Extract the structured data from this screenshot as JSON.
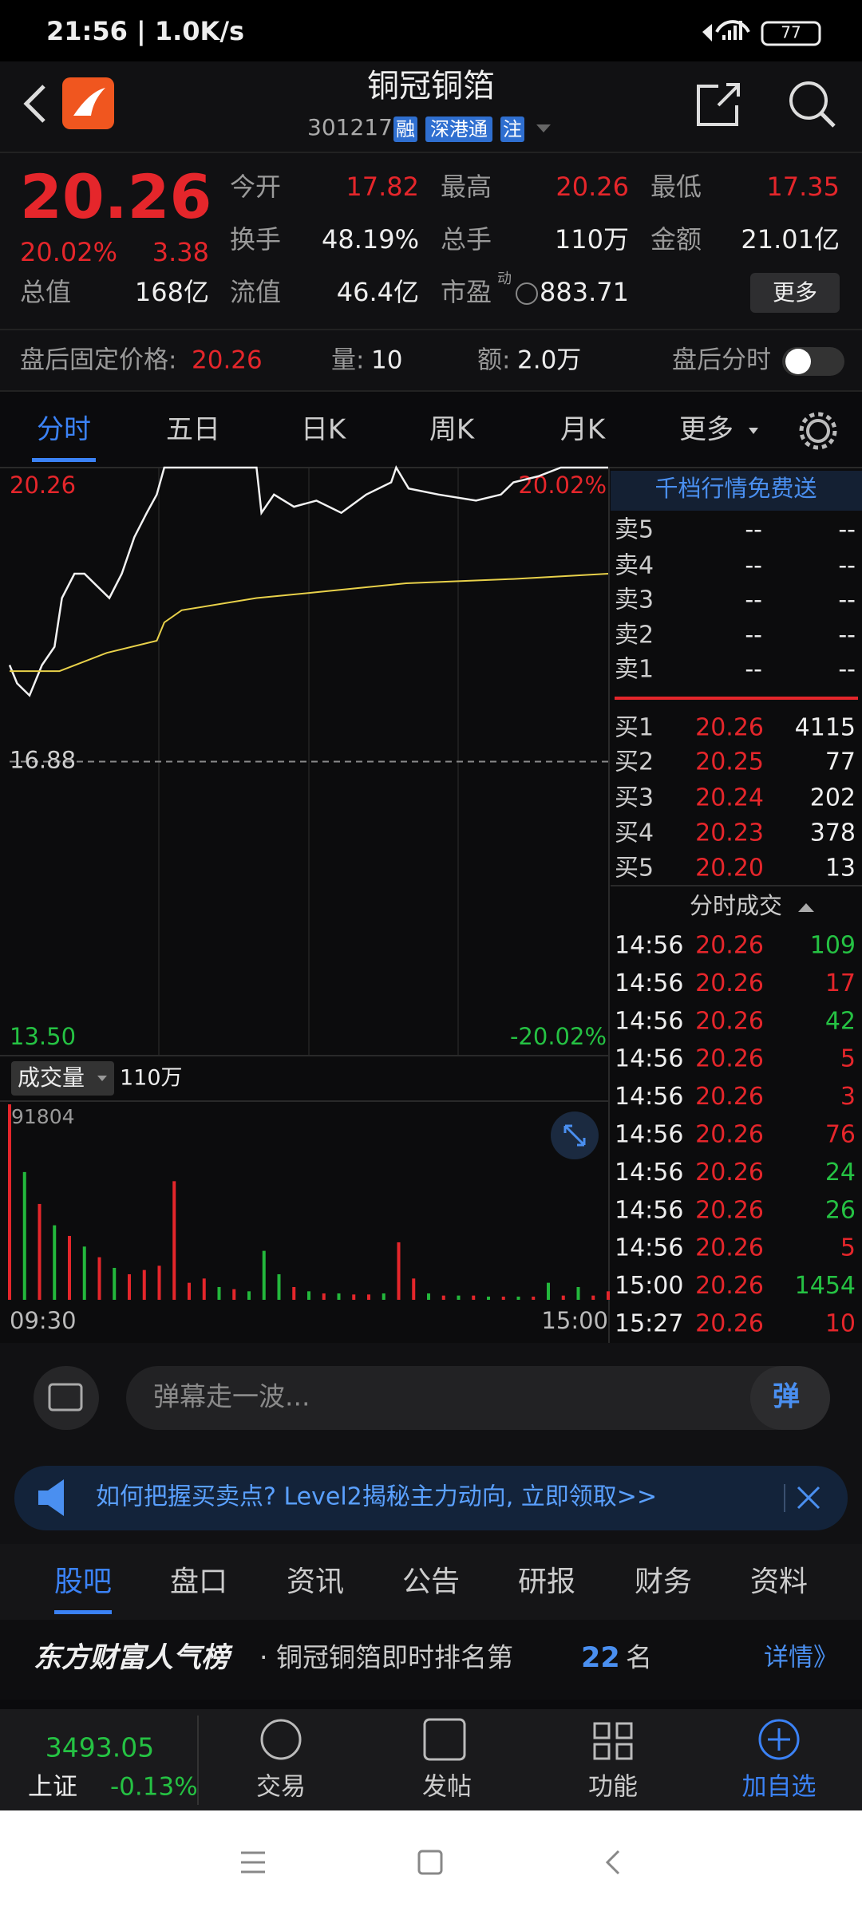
{
  "status_bar": {
    "time": "21:56 | 1.0K/s",
    "battery": "77"
  },
  "header": {
    "title": "铜冠铜箔",
    "code": "301217",
    "tags": [
      "融",
      "深港通",
      "注"
    ]
  },
  "quote": {
    "price": "20.26",
    "change_pct": "20.02%",
    "change": "3.38",
    "stats": [
      [
        "今开",
        "17.82"
      ],
      [
        "最高",
        "20.26"
      ],
      [
        "最低",
        "17.35"
      ],
      [
        "换手",
        "48.19%"
      ],
      [
        "总手",
        "110万"
      ],
      [
        "金额",
        "21.01亿"
      ],
      [
        "总值",
        "168亿"
      ],
      [
        "流值",
        "46.4亿"
      ],
      [
        "市盈",
        "883.71"
      ]
    ],
    "pe_mark": "动",
    "more": "更多"
  },
  "after_hours": {
    "price_label": "盘后固定价格:",
    "price": "20.26",
    "volume_label": "量:",
    "volume": "10",
    "amount_label": "额:",
    "amount": "2.0万",
    "toggle_label": "盘后分时"
  },
  "chart_tabs": [
    "分时",
    "五日",
    "日K",
    "周K",
    "月K",
    "更多"
  ],
  "chart_data": [
    {
      "type": "line",
      "xlim": [
        0,
        240
      ],
      "ylim": [
        13.5,
        20.26
      ],
      "yticks": [
        20.26,
        16.88,
        {
          "value": 13.5,
          "label": "13.50"
        }
      ],
      "ytick_colors": [
        "#e5262b",
        "#cfcfcf",
        "#25c243"
      ],
      "y2lim": [
        -20.02,
        20.02
      ],
      "y2ticks": [
        {
          "value": 20.02,
          "label": "20.02%"
        },
        {
          "value": -20.02,
          "label": "-20.02%"
        }
      ],
      "y2tick_colors": [
        "#e5262b",
        "#25c243"
      ],
      "series": [
        {
          "color": "#f2f2f2",
          "x": [
            0,
            3,
            8,
            13,
            18,
            21,
            26,
            30,
            35,
            40,
            45,
            50,
            55,
            59,
            62,
            99,
            101,
            106,
            114,
            123,
            133,
            143,
            153,
            155,
            160,
            172,
            187,
            197,
            202,
            212,
            221,
            240
          ],
          "values": [
            17.99,
            17.78,
            17.64,
            17.99,
            18.2,
            18.76,
            19.04,
            19.04,
            18.9,
            18.76,
            19.04,
            19.46,
            19.74,
            19.95,
            20.26,
            20.26,
            19.74,
            19.95,
            19.81,
            19.88,
            19.74,
            19.95,
            20.09,
            20.26,
            20.02,
            19.95,
            19.88,
            19.95,
            20.09,
            20.16,
            20.26,
            20.26
          ]
        },
        {
          "color": "#e8d14a",
          "x": [
            0,
            20,
            39,
            59,
            62,
            69,
            99,
            124,
            159,
            202,
            240
          ],
          "values": [
            17.92,
            17.92,
            18.13,
            18.27,
            18.48,
            18.62,
            18.76,
            18.83,
            18.93,
            18.98,
            19.04
          ]
        }
      ]
    },
    {
      "type": "bar",
      "label": "成交量",
      "total": "110万",
      "xlim": [
        0,
        240
      ],
      "ylim": [
        0,
        91804
      ],
      "yticks": [
        91804
      ],
      "xticks": [
        {
          "value": 0,
          "label": "09:30"
        },
        {
          "value": 240,
          "label": "15:00"
        }
      ],
      "x": [
        0,
        6,
        12,
        18,
        24,
        30,
        36,
        42,
        48,
        54,
        60,
        66,
        72,
        78,
        84,
        90,
        96,
        102,
        108,
        114,
        120,
        126,
        132,
        138,
        144,
        150,
        156,
        162,
        168,
        174,
        180,
        186,
        192,
        198,
        204,
        210,
        216,
        222,
        228,
        234,
        240
      ],
      "values": [
        91804,
        60000,
        45000,
        35000,
        30000,
        25000,
        20000,
        15000,
        12000,
        14000,
        16000,
        55700,
        8000,
        10000,
        6000,
        5000,
        4000,
        23000,
        12000,
        6000,
        4000,
        3000,
        3000,
        2500,
        2500,
        3000,
        27000,
        10000,
        3000,
        2000,
        2000,
        2000,
        1500,
        1500,
        1500,
        1500,
        8000,
        2000,
        6000,
        2000,
        4000
      ],
      "colors": [
        "#e5262b",
        "#23b83c",
        "#e5262b",
        "#23b83c",
        "#e5262b",
        "#23b83c",
        "#e5262b",
        "#23b83c",
        "#e5262b",
        "#e5262b",
        "#e5262b",
        "#e5262b",
        "#e5262b",
        "#e5262b",
        "#23b83c",
        "#e5262b",
        "#23b83c",
        "#23b83c",
        "#23b83c",
        "#e5262b",
        "#23b83c",
        "#e5262b",
        "#23b83c",
        "#e5262b",
        "#e5262b",
        "#23b83c",
        "#e5262b",
        "#e5262b",
        "#23b83c",
        "#e5262b",
        "#23b83c",
        "#e5262b",
        "#23b83c",
        "#e5262b",
        "#23b83c",
        "#e5262b",
        "#23b83c",
        "#e5262b",
        "#23b83c",
        "#e5262b",
        "#e5262b"
      ]
    }
  ],
  "order_book": {
    "promo": "千档行情免费送",
    "asks": [
      [
        "卖5",
        "--",
        "--"
      ],
      [
        "卖4",
        "--",
        "--"
      ],
      [
        "卖3",
        "--",
        "--"
      ],
      [
        "卖2",
        "--",
        "--"
      ],
      [
        "卖1",
        "--",
        "--"
      ]
    ],
    "bids": [
      [
        "买1",
        "20.26",
        "4115"
      ],
      [
        "买2",
        "20.25",
        "77"
      ],
      [
        "买3",
        "20.24",
        "202"
      ],
      [
        "买4",
        "20.23",
        "378"
      ],
      [
        "买5",
        "20.20",
        "13"
      ]
    ]
  },
  "trades": {
    "title": "分时成交",
    "rows": [
      [
        "14:56",
        "20.26",
        "109"
      ],
      [
        "14:56",
        "20.26",
        "17"
      ],
      [
        "14:56",
        "20.26",
        "42"
      ],
      [
        "14:56",
        "20.26",
        "5"
      ],
      [
        "14:56",
        "20.26",
        "3"
      ],
      [
        "14:56",
        "20.26",
        "76"
      ],
      [
        "14:56",
        "20.26",
        "24"
      ],
      [
        "14:56",
        "20.26",
        "26"
      ],
      [
        "14:56",
        "20.26",
        "5"
      ],
      [
        "15:00",
        "20.26",
        "1454"
      ],
      [
        "15:27",
        "20.26",
        "10"
      ]
    ],
    "volume_colors": [
      "#25c243",
      "#e5262b",
      "#25c243",
      "#e5262b",
      "#e5262b",
      "#e5262b",
      "#25c243",
      "#25c243",
      "#e5262b",
      "#25c243",
      "#e5262b"
    ]
  },
  "comment_bar": {
    "placeholder": "弹幕走一波...",
    "button": "弹"
  },
  "banner": {
    "text": "如何把握买卖点? Level2揭秘主力动向, 立即领取>>"
  },
  "section_tabs": [
    "股吧",
    "盘口",
    "资讯",
    "公告",
    "研报",
    "财务",
    "资料"
  ],
  "ranking": {
    "brand": "东方财富人气榜",
    "text": "· 铜冠铜箔即时排名第",
    "rank": "22",
    "suffix": "名",
    "link": "详情》"
  },
  "bottom_nav": {
    "index_value": "3493.05",
    "index_name": "上证",
    "index_change": "-0.13%",
    "items": [
      "交易",
      "发帖",
      "功能",
      "加自选"
    ]
  }
}
